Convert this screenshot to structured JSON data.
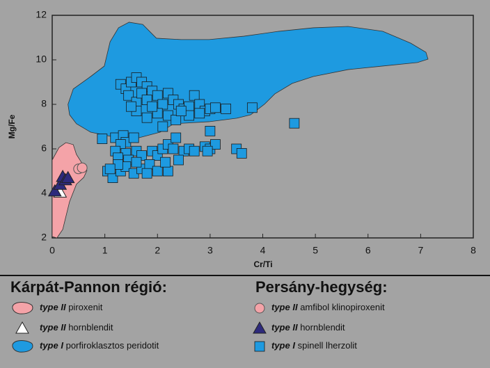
{
  "chart_data": {
    "type": "scatter",
    "x_label": "Cr/Ti",
    "y_label": "Mg/Fe",
    "xlim": [
      0,
      8
    ],
    "ylim": [
      2,
      12
    ],
    "xticks": [
      0,
      1,
      2,
      3,
      4,
      5,
      6,
      7,
      8
    ],
    "yticks": [
      2,
      4,
      6,
      8,
      10,
      12
    ],
    "groups": [
      {
        "title": "Kárpát-Pannon régió:",
        "series": [
          {
            "label_type": "type II",
            "name": "piroxenit",
            "kind": "region",
            "color": "#f4a3a8",
            "x": [
              0,
              0,
              0.13,
              0.26,
              0.4,
              0.46,
              0.57,
              0.66,
              0.6,
              0.46,
              0.33,
              0.2,
              0.09
            ],
            "y": [
              2.06,
              5.5,
              6.06,
              6.28,
              6.19,
              5.75,
              5.34,
              5.03,
              4.72,
              4.41,
              3.63,
              2.38,
              2.0
            ]
          },
          {
            "label_type": "type II",
            "name": "hornblendit",
            "kind": "triangle",
            "color": "#ffffff",
            "x": [
              0.15
            ],
            "y": [
              4.05
            ]
          },
          {
            "label_type": "type I",
            "name": "porfiroklasztos peridotit",
            "kind": "region",
            "color": "#1e9ae0",
            "x": [
              0.3,
              0.4,
              0.73,
              0.99,
              1.1,
              1.26,
              1.46,
              1.72,
              1.85,
              1.98,
              2.45,
              2.98,
              3.64,
              4.3,
              4.96,
              5.62,
              6.28,
              6.81,
              7.1,
              7.14,
              6.94,
              6.28,
              5.62,
              4.96,
              4.56,
              4.23,
              4.03,
              3.77,
              3.51,
              2.98,
              2.31,
              2.05,
              1.65,
              1.12,
              0.73,
              0.46,
              0.33
            ],
            "y": [
              8.0,
              8.69,
              9.25,
              9.72,
              10.81,
              11.44,
              11.69,
              11.59,
              11.28,
              10.97,
              10.91,
              10.91,
              11.06,
              11.28,
              11.44,
              11.5,
              11.28,
              10.75,
              10.34,
              10.03,
              9.88,
              9.72,
              9.56,
              9.25,
              8.94,
              8.47,
              8.0,
              7.53,
              7.38,
              7.22,
              7.13,
              6.75,
              6.5,
              6.56,
              6.75,
              7.13,
              7.53
            ]
          }
        ]
      },
      {
        "title": "Persány-hegység:",
        "series": [
          {
            "label_type": "type II",
            "name": "amfibol klinopiroxenit",
            "kind": "circle",
            "color": "#f4a3a8",
            "x": [
              0.5,
              0.57
            ],
            "y": [
              5.1,
              5.15
            ]
          },
          {
            "label_type": "type II",
            "name": "hornblendit",
            "kind": "triangle",
            "color": "#2e2a7c",
            "x": [
              0.05,
              0.15,
              0.2,
              0.25,
              0.3
            ],
            "y": [
              4.1,
              4.4,
              4.75,
              4.6,
              4.7
            ]
          },
          {
            "label_type": "type I",
            "name": "spinell lherzolit",
            "kind": "square",
            "color": "#1e9ae0",
            "x": [
              1.3,
              1.4,
              1.5,
              1.6,
              1.7,
              1.8,
              1.9,
              1.45,
              1.6,
              1.7,
              1.8,
              2.0,
              2.1,
              2.2,
              2.3,
              2.4,
              2.5,
              2.6,
              2.7,
              2.8,
              2.9,
              3.0,
              2.0,
              2.2,
              2.35,
              1.9,
              1.6,
              1.5,
              2.1,
              2.6,
              2.8,
              3.1,
              3.3,
              3.0,
              3.8,
              4.6,
              2.45,
              1.8,
              0.95,
              1.2,
              1.35,
              1.4,
              1.55,
              1.3,
              1.2,
              1.4,
              1.6,
              1.25,
              1.45,
              1.7,
              1.9,
              2.0,
              2.1,
              2.2,
              2.35,
              2.3,
              2.5,
              2.6,
              2.7,
              2.9,
              3.0,
              3.1,
              2.95,
              3.5,
              3.6,
              1.05,
              1.15,
              1.3,
              1.4,
              1.55,
              1.7,
              1.85,
              2.0,
              2.2,
              2.15,
              2.4,
              1.6,
              1.25,
              1.1,
              1.8
            ],
            "y": [
              8.9,
              8.7,
              9.0,
              9.2,
              9.0,
              8.8,
              8.6,
              8.4,
              8.1,
              8.5,
              8.2,
              8.4,
              8.0,
              8.5,
              8.2,
              8.0,
              7.8,
              7.9,
              8.4,
              8.0,
              7.7,
              7.8,
              7.6,
              7.5,
              7.3,
              7.9,
              7.7,
              7.9,
              7.0,
              7.5,
              7.6,
              7.85,
              7.8,
              6.8,
              7.85,
              7.15,
              7.7,
              7.4,
              6.45,
              6.5,
              6.6,
              6.3,
              6.5,
              6.2,
              5.9,
              5.8,
              5.9,
              5.6,
              5.5,
              5.7,
              5.9,
              5.7,
              6.0,
              6.2,
              6.5,
              6.0,
              5.9,
              6.0,
              5.9,
              6.1,
              6.0,
              6.2,
              5.9,
              6.0,
              5.8,
              5.0,
              4.7,
              5.0,
              5.2,
              4.9,
              5.1,
              5.3,
              5.0,
              5.0,
              5.4,
              5.5,
              5.4,
              5.3,
              5.1,
              4.9
            ]
          }
        ]
      }
    ]
  }
}
